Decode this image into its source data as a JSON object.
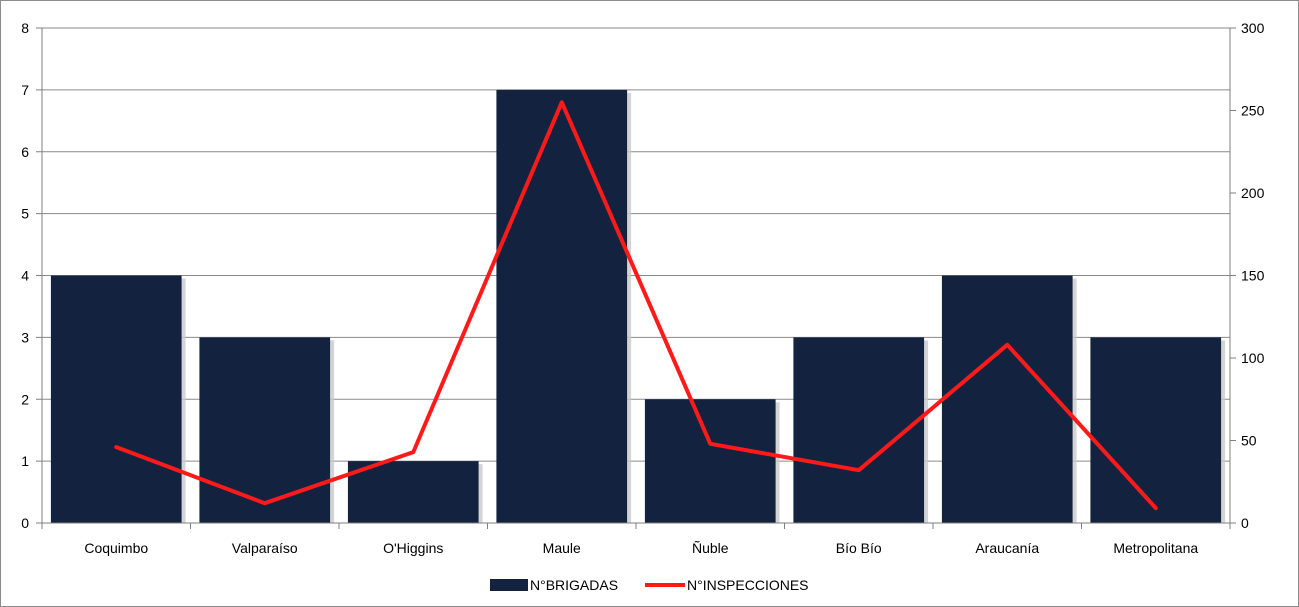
{
  "chart_data": {
    "type": "bar",
    "categories": [
      "Coquimbo",
      "Valparaíso",
      "O'Higgins",
      "Maule",
      "Ñuble",
      "Bío Bío",
      "Araucanía",
      "Metropolitana"
    ],
    "series": [
      {
        "name": "N°BRIGADAS",
        "type": "bar",
        "axis": "left",
        "color": "#13233f",
        "values": [
          4,
          3,
          1,
          7,
          2,
          3,
          4,
          3
        ]
      },
      {
        "name": "N°INSPECCIONES",
        "type": "line",
        "axis": "right",
        "color": "#ff1a1a",
        "values": [
          46,
          12,
          43,
          255,
          48,
          32,
          108,
          9
        ]
      }
    ],
    "y_left": {
      "min": 0,
      "max": 8,
      "ticks": [
        "0",
        "1",
        "2",
        "3",
        "4",
        "5",
        "6",
        "7",
        "8"
      ]
    },
    "y_right": {
      "min": 0,
      "max": 300,
      "ticks": [
        "0",
        "50",
        "100",
        "150",
        "200",
        "250",
        "300"
      ]
    },
    "grid": true,
    "legend_position": "bottom"
  }
}
